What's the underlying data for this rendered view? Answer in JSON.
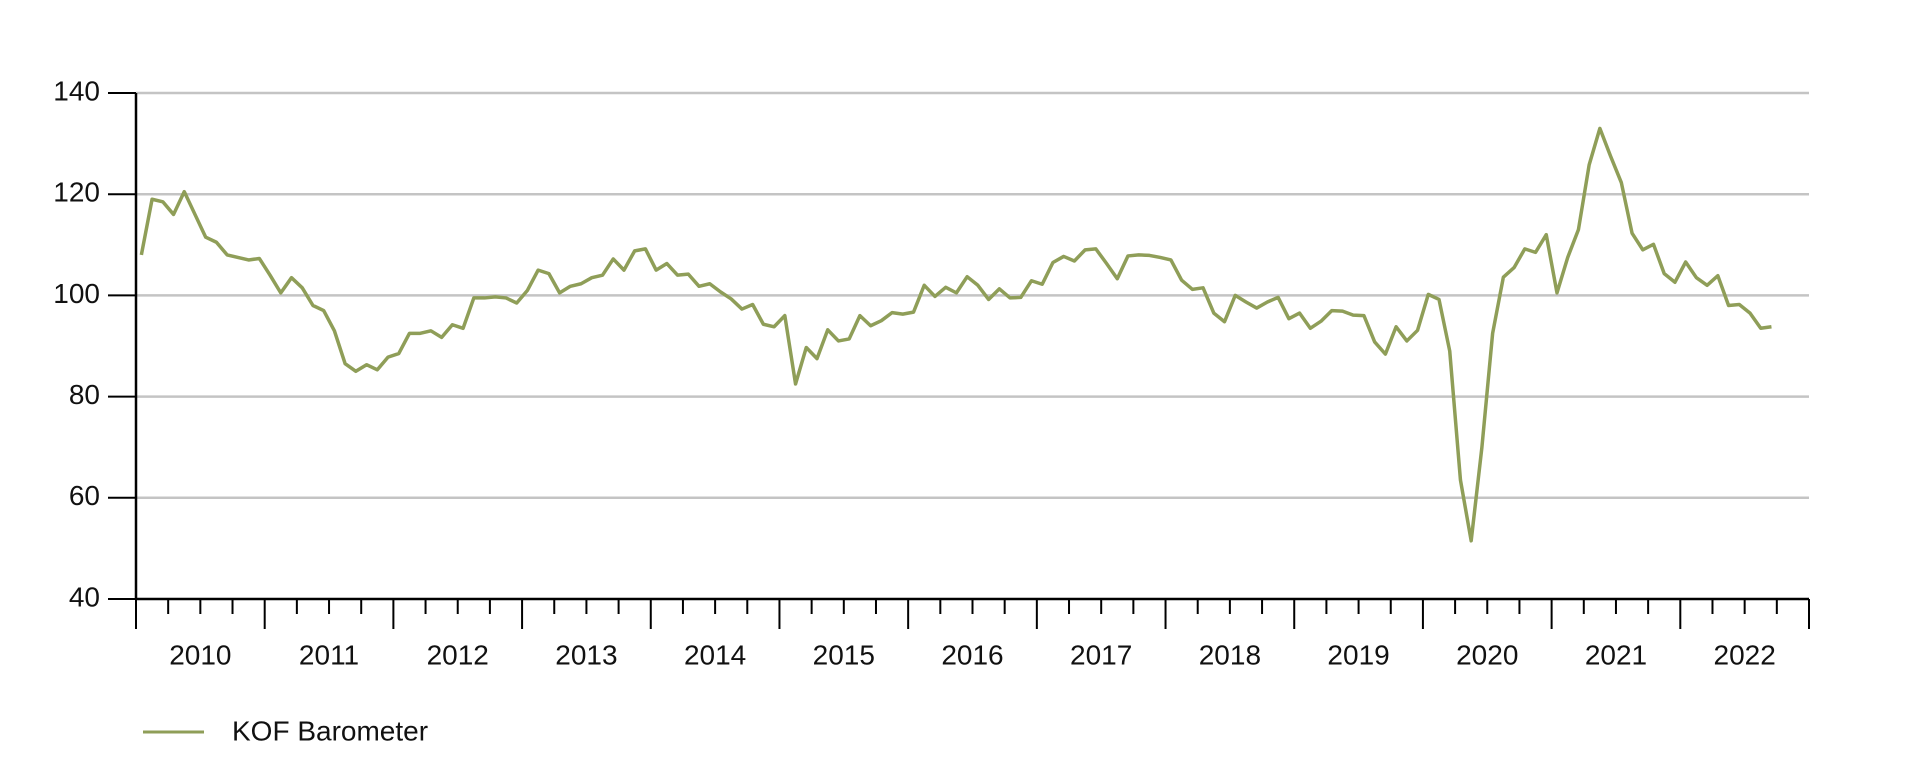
{
  "chart_data": {
    "type": "line",
    "categories": [
      "2010",
      null,
      null,
      null,
      null,
      null,
      null,
      null,
      null,
      null,
      null,
      null,
      "2011",
      null,
      null,
      null,
      null,
      null,
      null,
      null,
      null,
      null,
      null,
      null,
      "2012",
      null,
      null,
      null,
      null,
      null,
      null,
      null,
      null,
      null,
      null,
      null,
      "2013",
      null,
      null,
      null,
      null,
      null,
      null,
      null,
      null,
      null,
      null,
      null,
      "2014",
      null,
      null,
      null,
      null,
      null,
      null,
      null,
      null,
      null,
      null,
      null,
      "2015",
      null,
      null,
      null,
      null,
      null,
      null,
      null,
      null,
      null,
      null,
      null,
      "2016",
      null,
      null,
      null,
      null,
      null,
      null,
      null,
      null,
      null,
      null,
      null,
      "2017",
      null,
      null,
      null,
      null,
      null,
      null,
      null,
      null,
      null,
      null,
      null,
      "2018",
      null,
      null,
      null,
      null,
      null,
      null,
      null,
      null,
      null,
      null,
      null,
      "2019",
      null,
      null,
      null,
      null,
      null,
      null,
      null,
      null,
      null,
      null,
      null,
      "2020",
      null,
      null,
      null,
      null,
      null,
      null,
      null,
      null,
      null,
      null,
      null,
      "2021",
      null,
      null,
      null,
      null,
      null,
      null,
      null,
      null,
      null,
      null,
      null,
      "2022",
      null,
      null,
      null,
      null,
      null,
      null,
      null,
      null
    ],
    "series": [
      {
        "name": "KOF Barometer",
        "color": "#8f9e58",
        "values": [
          108,
          119,
          118.5,
          116,
          120.5,
          116,
          111.5,
          110.5,
          108,
          107.5,
          107,
          107.3,
          104,
          100.5,
          103.5,
          101.5,
          98,
          97,
          93,
          86.5,
          85,
          86.3,
          85.3,
          87.8,
          88.5,
          92.5,
          92.5,
          93,
          91.7,
          94.2,
          93.5,
          99.5,
          99.5,
          99.7,
          99.5,
          98.5,
          101,
          105,
          104.3,
          100.5,
          101.8,
          102.3,
          103.5,
          104,
          107.2,
          105,
          108.8,
          109.2,
          105,
          106.3,
          104,
          104.2,
          101.8,
          102.3,
          100.7,
          99.3,
          97.3,
          98.2,
          94.3,
          93.8,
          96,
          82.5,
          89.7,
          87.5,
          93.2,
          91,
          91.4,
          96,
          94,
          95,
          96.6,
          96.3,
          96.7,
          102,
          99.8,
          101.6,
          100.5,
          103.7,
          102,
          99.2,
          101.3,
          99.5,
          99.6,
          102.9,
          102.2,
          106.5,
          107.7,
          106.8,
          109,
          109.2,
          106.3,
          103.3,
          107.8,
          108,
          107.9,
          107.5,
          107,
          103,
          101.2,
          101.5,
          96.5,
          94.8,
          100,
          98.7,
          97.5,
          98.7,
          99.6,
          95.4,
          96.5,
          93.5,
          94.9,
          97,
          96.9,
          96.1,
          96,
          90.8,
          88.4,
          93.8,
          91,
          93.1,
          100.2,
          99.2,
          89,
          63.5,
          51.5,
          70,
          92.5,
          103.6,
          105.5,
          109.2,
          108.5,
          112,
          100.5,
          107.5,
          113,
          125.8,
          133,
          127.5,
          122.3,
          112.3,
          109,
          110.1,
          104.3,
          102.6,
          106.6,
          103.5,
          102,
          103.9,
          98,
          98.2,
          96.5,
          93.5,
          93.8
        ]
      }
    ],
    "ylim": [
      40,
      140
    ],
    "yticks": [
      40,
      60,
      80,
      100,
      120,
      140
    ],
    "grid": true
  }
}
